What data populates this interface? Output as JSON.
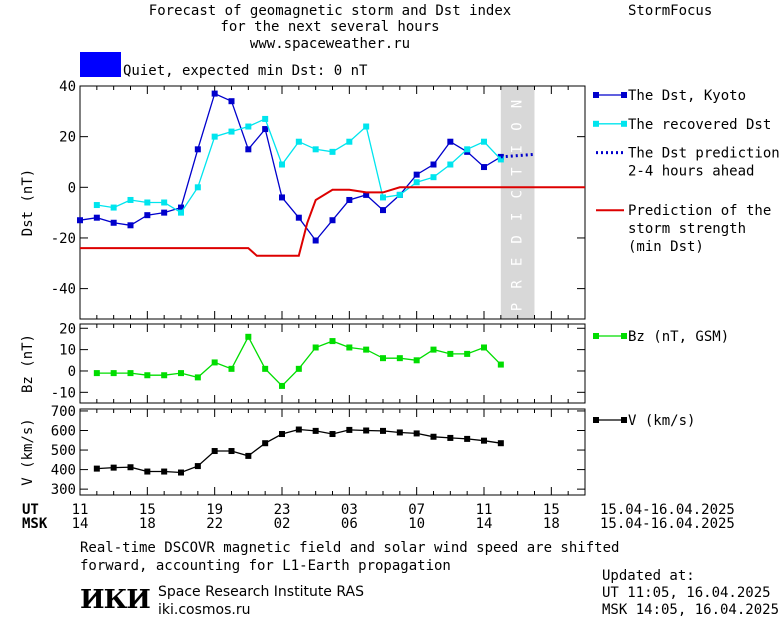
{
  "header": {
    "title_line1": "Forecast of geomagnetic storm and Dst index",
    "title_line2": "for the next several hours",
    "title_line3": "www.spaceweather.ru",
    "brand": "StormFocus",
    "status_text": "Quiet, expected min Dst: 0 nT",
    "status_color": "#0000ff"
  },
  "chart_data": [
    {
      "type": "line",
      "ylabel": "Dst (nT)",
      "ylim": [
        -52,
        40
      ],
      "yticks": [
        40,
        20,
        0,
        -20,
        -40
      ],
      "xlim": [
        0,
        30
      ],
      "prediction_band": {
        "x": [
          25.0,
          27.0
        ],
        "label": "PREDICTION",
        "color": "#d8d8d8"
      },
      "legend_placement": "right",
      "series": [
        {
          "name": "The Dst, Kyoto",
          "color": "#0000cc",
          "points": [
            [
              0,
              -13
            ],
            [
              1,
              -12
            ],
            [
              2,
              -14
            ],
            [
              3,
              -15
            ],
            [
              4,
              -11
            ],
            [
              5,
              -10
            ],
            [
              6,
              -8
            ],
            [
              7,
              15
            ],
            [
              8,
              37
            ],
            [
              9,
              34
            ],
            [
              10,
              15
            ],
            [
              11,
              23
            ],
            [
              12,
              -4
            ],
            [
              13,
              -12
            ],
            [
              14,
              -21
            ],
            [
              15,
              -13
            ],
            [
              16,
              -5
            ],
            [
              17,
              -3
            ],
            [
              18,
              -9
            ],
            [
              19,
              -3
            ],
            [
              20,
              5
            ],
            [
              21,
              9
            ],
            [
              22,
              18
            ],
            [
              23,
              14
            ],
            [
              24,
              8
            ],
            [
              25,
              12
            ]
          ]
        },
        {
          "name": "The recovered Dst",
          "color": "#00e5ee",
          "points": [
            [
              1,
              -7
            ],
            [
              2,
              -8
            ],
            [
              3,
              -5
            ],
            [
              4,
              -6
            ],
            [
              5,
              -6
            ],
            [
              6,
              -10
            ],
            [
              7,
              0
            ],
            [
              8,
              20
            ],
            [
              9,
              22
            ],
            [
              10,
              24
            ],
            [
              11,
              27
            ],
            [
              12,
              9
            ],
            [
              13,
              18
            ],
            [
              14,
              15
            ],
            [
              15,
              14
            ],
            [
              16,
              18
            ],
            [
              17,
              24
            ],
            [
              18,
              -4
            ],
            [
              19,
              -3
            ],
            [
              20,
              2
            ],
            [
              21,
              4
            ],
            [
              22,
              9
            ],
            [
              23,
              15
            ],
            [
              24,
              18
            ],
            [
              25,
              11
            ]
          ]
        },
        {
          "name": "The Dst prediction",
          "name_line2": "2-4 hours ahead",
          "color": "#0000cc",
          "style": "dotted",
          "points": [
            [
              25,
              12
            ],
            [
              27,
              13
            ]
          ]
        },
        {
          "name": "Prediction of the",
          "name_line2": "storm strength",
          "name_line3": "(min Dst)",
          "color": "#dd0000",
          "style": "step",
          "points": [
            [
              0,
              -24
            ],
            [
              9,
              -24
            ],
            [
              10,
              -24
            ],
            [
              10.5,
              -27
            ],
            [
              12,
              -27
            ],
            [
              13,
              -27
            ],
            [
              13.5,
              -14
            ],
            [
              14,
              -5
            ],
            [
              15,
              -1
            ],
            [
              16,
              -1
            ],
            [
              17,
              -2
            ],
            [
              18,
              -2
            ],
            [
              19,
              0
            ],
            [
              20,
              0
            ],
            [
              30,
              0
            ]
          ]
        }
      ]
    },
    {
      "type": "line",
      "ylabel": "Bz (nT)",
      "ylim": [
        -15,
        22
      ],
      "yticks": [
        20,
        10,
        0,
        -10
      ],
      "series": [
        {
          "name": "Bz (nT, GSM)",
          "color": "#00dd00",
          "points": [
            [
              1,
              -1
            ],
            [
              2,
              -1
            ],
            [
              3,
              -1
            ],
            [
              4,
              -2
            ],
            [
              5,
              -2
            ],
            [
              6,
              -1
            ],
            [
              7,
              -3
            ],
            [
              8,
              4
            ],
            [
              9,
              1
            ],
            [
              10,
              16
            ],
            [
              11,
              1
            ],
            [
              12,
              -7
            ],
            [
              13,
              1
            ],
            [
              14,
              11
            ],
            [
              15,
              14
            ],
            [
              16,
              11
            ],
            [
              17,
              10
            ],
            [
              18,
              6
            ],
            [
              19,
              6
            ],
            [
              20,
              5
            ],
            [
              21,
              10
            ],
            [
              22,
              8
            ],
            [
              23,
              8
            ],
            [
              24,
              11
            ],
            [
              25,
              3
            ]
          ]
        }
      ]
    },
    {
      "type": "line",
      "ylabel": "V (km/s)",
      "ylim": [
        270,
        710
      ],
      "yticks": [
        700,
        600,
        500,
        400,
        300
      ],
      "series": [
        {
          "name": "V (km/s)",
          "color": "#000000",
          "points": [
            [
              1,
              405
            ],
            [
              2,
              410
            ],
            [
              3,
              412
            ],
            [
              4,
              390
            ],
            [
              5,
              390
            ],
            [
              6,
              385
            ],
            [
              7,
              418
            ],
            [
              8,
              495
            ],
            [
              9,
              495
            ],
            [
              10,
              470
            ],
            [
              11,
              535
            ],
            [
              12,
              582
            ],
            [
              13,
              605
            ],
            [
              14,
              598
            ],
            [
              15,
              582
            ],
            [
              16,
              603
            ],
            [
              17,
              600
            ],
            [
              18,
              598
            ],
            [
              19,
              590
            ],
            [
              20,
              585
            ],
            [
              21,
              568
            ],
            [
              22,
              562
            ],
            [
              23,
              557
            ],
            [
              24,
              548
            ],
            [
              25,
              535
            ]
          ]
        }
      ]
    }
  ],
  "x_axis": {
    "ut_label": "UT",
    "msk_label": "MSK",
    "ut_ticks": [
      "11",
      "15",
      "19",
      "23",
      "03",
      "07",
      "11",
      "15"
    ],
    "msk_ticks": [
      "14",
      "18",
      "22",
      "02",
      "06",
      "10",
      "14",
      "18"
    ],
    "date_range_ut": "15.04-16.04.2025",
    "date_range_msk": "15.04-16.04.2025"
  },
  "footer": {
    "note_line1": "Real-time DSCOVR magnetic field and solar wind speed are shifted",
    "note_line2": "forward, accounting for L1-Earth propagation",
    "logo_text": "ИКИ",
    "institute": "Space Research Institute RAS",
    "site": "iki.cosmos.ru",
    "updated_label": "Updated at:",
    "updated_ut": "UT   11:05, 16.04.2025",
    "updated_msk": "MSK 14:05, 16.04.2025"
  }
}
